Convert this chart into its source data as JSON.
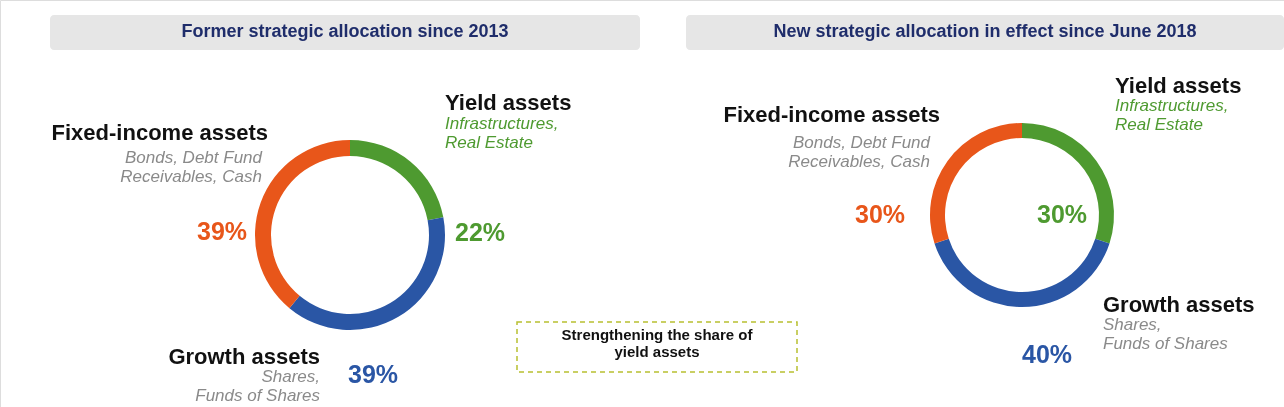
{
  "chart_data": [
    {
      "type": "donut",
      "title": "Former strategic allocation since 2013",
      "categories": [
        "Yield assets",
        "Growth assets",
        "Fixed-income assets"
      ],
      "values": [
        22,
        39,
        39
      ],
      "colors": [
        "#4e9a30",
        "#2a56a5",
        "#e8561a"
      ],
      "value_labels": [
        "22%",
        "39%",
        "39%"
      ],
      "annotations": [
        "Infrastructures,\nReal Estate",
        "Shares,\nFunds of Shares",
        "Bonds, Debt Fund\nReceivables, Cash"
      ]
    },
    {
      "type": "other",
      "annotations": [
        "Strengthening the share of\nyield assets"
      ]
    },
    {
      "type": "donut",
      "title": "New strategic allocation in effect since June 2018",
      "categories": [
        "Yield assets",
        "Growth assets",
        "Fixed-income assets"
      ],
      "values": [
        30,
        40,
        30
      ],
      "colors": [
        "#4e9a30",
        "#2a56a5",
        "#e8561a"
      ],
      "value_labels": [
        "30%",
        "40%",
        "30%"
      ],
      "annotations": [
        "Infrastructures,\nReal Estate",
        "Shares,\nFunds of Shares",
        "Bonds, Debt Fund\nReceivables, Cash"
      ]
    }
  ]
}
